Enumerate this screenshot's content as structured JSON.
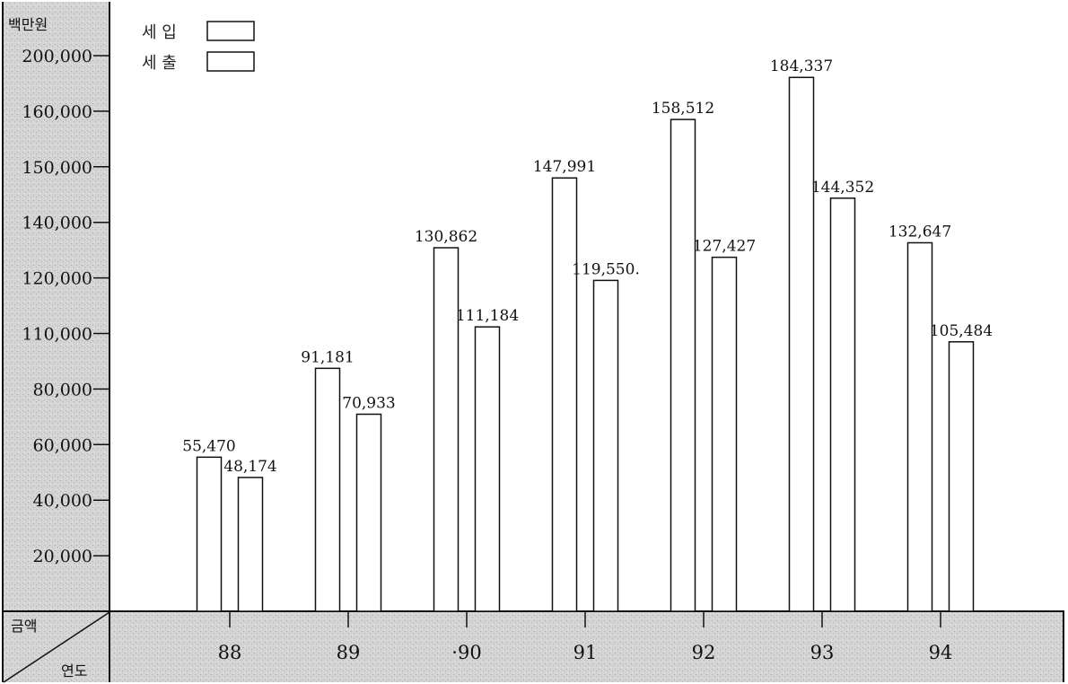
{
  "chart_data": {
    "type": "bar",
    "unit_label": "백만원",
    "corner_top": "금액",
    "corner_bottom": "연도",
    "categories": [
      "88",
      "89",
      "·90",
      "91",
      "92",
      "93",
      "94"
    ],
    "y_ticks": [
      "200,000",
      "160,000",
      "150,000",
      "140,000",
      "120,000",
      "110,000",
      "80,000",
      "60,000",
      "40,000",
      "20,000"
    ],
    "series": [
      {
        "name": "세 입",
        "values": [
          55470,
          91181,
          130862,
          147991,
          158512,
          184337,
          132647
        ],
        "labels": [
          "55,470",
          "91,181",
          "130,862",
          "147,991",
          "158,512",
          "184,337",
          "132,647"
        ]
      },
      {
        "name": "세 출",
        "values": [
          48174,
          70933,
          111184,
          119550,
          127427,
          144352,
          105484
        ],
        "labels": [
          "48,174",
          "70,933",
          "111,184",
          "119,550.",
          "127,427",
          "144,352",
          "105,484"
        ]
      }
    ],
    "legend_position": "top-left",
    "grid": false,
    "colors": {
      "panel": "#d6d6d6",
      "bar_fill": "#ffffff",
      "ink": "#111111"
    }
  }
}
